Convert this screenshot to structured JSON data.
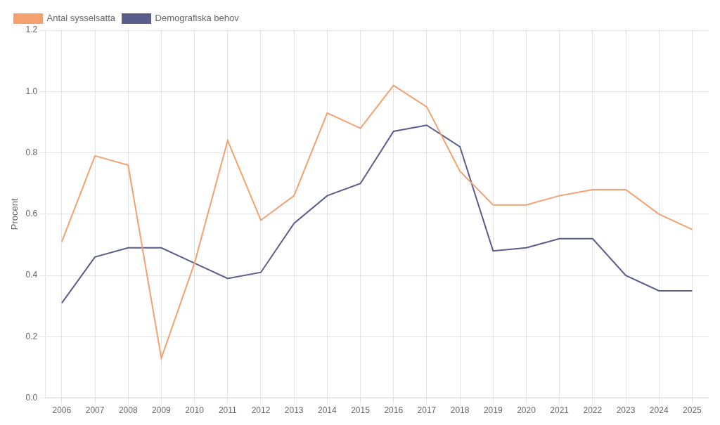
{
  "chart_data": {
    "type": "line",
    "x": [
      2006,
      2007,
      2008,
      2009,
      2010,
      2011,
      2012,
      2013,
      2014,
      2015,
      2016,
      2017,
      2018,
      2019,
      2020,
      2021,
      2022,
      2023,
      2024,
      2025
    ],
    "series": [
      {
        "name": "Antal sysselsatta",
        "color": "#F4A070",
        "values": [
          0.51,
          0.79,
          0.76,
          0.13,
          0.44,
          0.84,
          0.58,
          0.66,
          0.93,
          0.88,
          1.02,
          0.95,
          0.74,
          0.63,
          0.63,
          0.66,
          0.68,
          0.68,
          0.6,
          0.55
        ]
      },
      {
        "name": "Demografiska behov",
        "color": "#5A5C8A",
        "values": [
          0.31,
          0.46,
          0.49,
          0.49,
          0.44,
          0.39,
          0.41,
          0.57,
          0.66,
          0.7,
          0.87,
          0.89,
          0.82,
          0.48,
          0.49,
          0.52,
          0.52,
          0.4,
          0.35,
          0.35
        ]
      }
    ],
    "y_label": "Procent",
    "xlim": [
      2005.5,
      2025.5
    ],
    "xticks": [
      2006,
      2007,
      2008,
      2009,
      2010,
      2011,
      2012,
      2013,
      2014,
      2015,
      2016,
      2017,
      2018,
      2019,
      2020,
      2021,
      2022,
      2023,
      2024,
      2025
    ],
    "ylim": [
      0.0,
      1.2
    ],
    "yticks": [
      {
        "value": 0.0,
        "label": "0.0"
      },
      0.2,
      0.4,
      0.6,
      0.8,
      {
        "value": 1.0,
        "label": "1.0"
      },
      1.2
    ],
    "grid": true,
    "legend": "upper left"
  }
}
